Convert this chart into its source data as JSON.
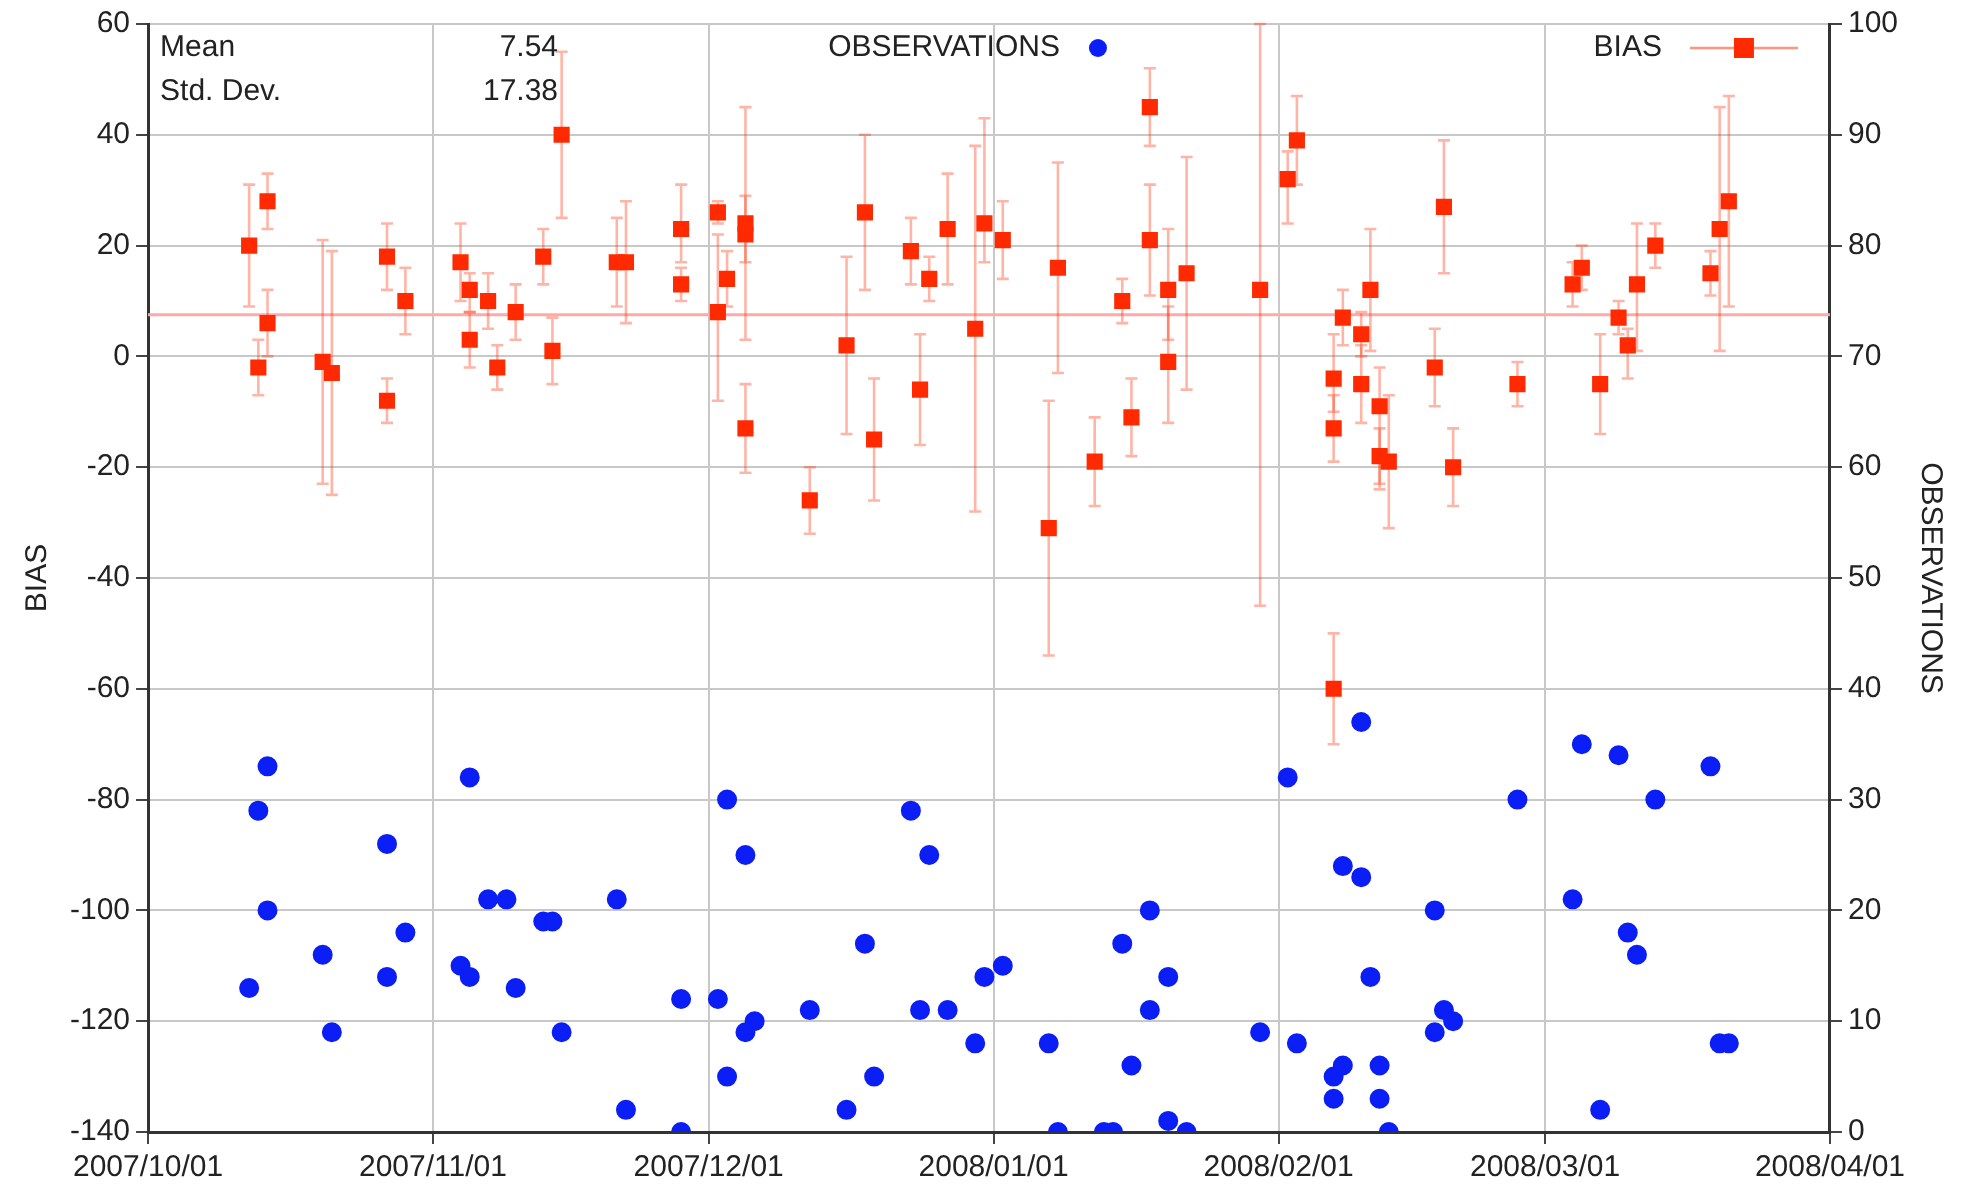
{
  "chart_data": {
    "type": "scatter",
    "ylabel": "BIAS",
    "y2label": "OBSERVATIONS",
    "annotations": [
      "Mean",
      "7.54",
      "Std. Dev.",
      "17.38"
    ],
    "xlim": [
      "2007-10-01",
      "2008-04-01"
    ],
    "xticks": [
      {
        "value": "2007-10-01",
        "label": "2007/10/01"
      },
      {
        "value": "2007-11-01",
        "label": "2007/11/01"
      },
      {
        "value": "2007-12-01",
        "label": "2007/12/01"
      },
      {
        "value": "2008-01-01",
        "label": "2008/01/01"
      },
      {
        "value": "2008-02-01",
        "label": "2008/02/01"
      },
      {
        "value": "2008-03-01",
        "label": "2008/03/01"
      },
      {
        "value": "2008-04-01",
        "label": "2008/04/01"
      }
    ],
    "ylim": [
      -140,
      60
    ],
    "yticks": [
      -140,
      -120,
      -100,
      -80,
      -60,
      -40,
      -20,
      0,
      20,
      40,
      60
    ],
    "y2lim": [
      0,
      100
    ],
    "y2ticks": [
      0,
      10,
      20,
      30,
      40,
      50,
      60,
      70,
      80,
      90,
      100
    ],
    "grid": true,
    "legend": "top right",
    "ref_lines": [
      {
        "axis": "y",
        "value": 7.54,
        "color": "#ffaaaa"
      }
    ],
    "series": [
      {
        "name": "OBSERVATIONS",
        "color": "#0a1ef5",
        "axis": "y2",
        "marker": "circle",
        "x": [
          "2007-10-12",
          "2007-10-13",
          "2007-10-14",
          "2007-10-14",
          "2007-10-20",
          "2007-10-21",
          "2007-10-27",
          "2007-10-27",
          "2007-10-29",
          "2007-11-05",
          "2007-11-04",
          "2007-11-05",
          "2007-11-07",
          "2007-11-09",
          "2007-11-10",
          "2007-11-13",
          "2007-11-14",
          "2007-11-15",
          "2007-11-21",
          "2007-11-22",
          "2007-11-28",
          "2007-11-28",
          "2007-12-02",
          "2007-12-03",
          "2007-12-03",
          "2007-12-05",
          "2007-12-06",
          "2007-12-05",
          "2007-12-12",
          "2007-12-16",
          "2007-12-18",
          "2007-12-19",
          "2007-12-23",
          "2007-12-24",
          "2007-12-25",
          "2007-12-27",
          "2007-12-30",
          "2007-12-31",
          "2008-01-02",
          "2008-01-07",
          "2008-01-08",
          "2008-01-13",
          "2008-01-14",
          "2008-01-15",
          "2008-01-16",
          "2008-01-18",
          "2008-01-18",
          "2008-01-20",
          "2008-01-20",
          "2008-01-22",
          "2008-01-30",
          "2008-02-02",
          "2008-02-03",
          "2008-02-07",
          "2008-02-07",
          "2008-02-08",
          "2008-02-08",
          "2008-02-10",
          "2008-02-10",
          "2008-02-11",
          "2008-02-12",
          "2008-02-12",
          "2008-02-13",
          "2008-02-18",
          "2008-02-18",
          "2008-02-19",
          "2008-02-20",
          "2008-02-27",
          "2008-03-04",
          "2008-03-05",
          "2008-03-07",
          "2008-03-09",
          "2008-03-10",
          "2008-03-11",
          "2008-03-13",
          "2008-03-19",
          "2008-03-20",
          "2008-03-21"
        ],
        "values": [
          13,
          29,
          33,
          20,
          16,
          9,
          26,
          14,
          18,
          32,
          15,
          14,
          21,
          21,
          13,
          19,
          19,
          9,
          21,
          2,
          0,
          12,
          12,
          5,
          30,
          25,
          10,
          9,
          11,
          2,
          17,
          5,
          29,
          11,
          25,
          11,
          8,
          14,
          15,
          8,
          0,
          0,
          0,
          17,
          6,
          11,
          20,
          14,
          1,
          0,
          9,
          32,
          8,
          3,
          5,
          6,
          24,
          37,
          23,
          14,
          6,
          3,
          0,
          20,
          9,
          11,
          10,
          30,
          21,
          35,
          2,
          34,
          18,
          16,
          30,
          33,
          8,
          8
        ]
      },
      {
        "name": "BIAS",
        "color": "#ff2a00",
        "marker": "square",
        "x": [
          "2007-10-12",
          "2007-10-13",
          "2007-10-14",
          "2007-10-14",
          "2007-10-20",
          "2007-10-21",
          "2007-10-27",
          "2007-10-27",
          "2007-10-29",
          "2007-11-04",
          "2007-11-05",
          "2007-11-05",
          "2007-11-07",
          "2007-11-08",
          "2007-11-10",
          "2007-11-13",
          "2007-11-14",
          "2007-11-15",
          "2007-11-21",
          "2007-11-22",
          "2007-11-28",
          "2007-11-28",
          "2007-12-02",
          "2007-12-02",
          "2007-12-03",
          "2007-12-05",
          "2007-12-05",
          "2007-12-05",
          "2007-12-12",
          "2007-12-16",
          "2007-12-18",
          "2007-12-19",
          "2007-12-23",
          "2007-12-24",
          "2007-12-25",
          "2007-12-27",
          "2007-12-30",
          "2007-12-31",
          "2008-01-02",
          "2008-01-07",
          "2008-01-08",
          "2008-01-12",
          "2008-01-15",
          "2008-01-16",
          "2008-01-18",
          "2008-01-18",
          "2008-01-20",
          "2008-01-20",
          "2008-01-22",
          "2008-01-30",
          "2008-02-02",
          "2008-02-03",
          "2008-02-07",
          "2008-02-07",
          "2008-02-07",
          "2008-02-08",
          "2008-02-10",
          "2008-02-11",
          "2008-02-10",
          "2008-02-12",
          "2008-02-12",
          "2008-02-13",
          "2008-02-18",
          "2008-02-19",
          "2008-02-20",
          "2008-02-27",
          "2008-03-04",
          "2008-03-05",
          "2008-03-07",
          "2008-03-09",
          "2008-03-10",
          "2008-03-11",
          "2008-03-13",
          "2008-03-19",
          "2008-03-20",
          "2008-03-21"
        ],
        "values": [
          20,
          -2,
          28,
          6,
          -1,
          -3,
          18,
          -8,
          10,
          17,
          12,
          3,
          10,
          -2,
          8,
          18,
          1,
          40,
          17,
          17,
          23,
          13,
          26,
          8,
          14,
          24,
          22,
          -13,
          -26,
          2,
          26,
          -15,
          19,
          -6,
          14,
          23,
          5,
          24,
          21,
          -31,
          16,
          -19,
          10,
          -11,
          21,
          45,
          12,
          -1,
          15,
          12,
          32,
          39,
          -60,
          -4,
          -13,
          7,
          4,
          12,
          -5,
          -9,
          -18,
          -19,
          -2,
          27,
          -20,
          -5,
          13,
          16,
          -5,
          7,
          2,
          13,
          20,
          15,
          23,
          28
        ],
        "errors": [
          [
            9,
            31
          ],
          [
            -7,
            3
          ],
          [
            23,
            33
          ],
          [
            0,
            12
          ],
          [
            -23,
            21
          ],
          [
            -25,
            19
          ],
          [
            12,
            24
          ],
          [
            -12,
            -4
          ],
          [
            4,
            16
          ],
          [
            10,
            24
          ],
          [
            8,
            15
          ],
          [
            -2,
            8
          ],
          [
            5,
            15
          ],
          [
            -6,
            2
          ],
          [
            3,
            13
          ],
          [
            13,
            23
          ],
          [
            -5,
            7
          ],
          [
            25,
            55
          ],
          [
            9,
            25
          ],
          [
            6,
            28
          ],
          [
            17,
            31
          ],
          [
            10,
            16
          ],
          [
            24,
            28
          ],
          [
            -8,
            22
          ],
          [
            9,
            19
          ],
          [
            3,
            45
          ],
          [
            17,
            29
          ],
          [
            -21,
            -5
          ],
          [
            -32,
            -20
          ],
          [
            -14,
            18
          ],
          [
            12,
            40
          ],
          [
            -26,
            -4
          ],
          [
            13,
            25
          ],
          [
            -16,
            4
          ],
          [
            10,
            18
          ],
          [
            13,
            33
          ],
          [
            -28,
            38
          ],
          [
            17,
            43
          ],
          [
            14,
            28
          ],
          [
            -54,
            -8
          ],
          [
            -3,
            35
          ],
          [
            -27,
            -11
          ],
          [
            6,
            14
          ],
          [
            -18,
            -4
          ],
          [
            11,
            31
          ],
          [
            38,
            52
          ],
          [
            3,
            23
          ],
          [
            -12,
            9
          ],
          [
            -6,
            36
          ],
          [
            -45,
            60
          ],
          [
            24,
            37
          ],
          [
            31,
            47
          ],
          [
            -70,
            -50
          ],
          [
            -10,
            4
          ],
          [
            -19,
            -7
          ],
          [
            2,
            12
          ],
          [
            0,
            8
          ],
          [
            1,
            23
          ],
          [
            -12,
            2
          ],
          [
            -24,
            -2
          ],
          [
            -23,
            -13
          ],
          [
            -31,
            -7
          ],
          [
            -9,
            5
          ],
          [
            15,
            39
          ],
          [
            -27,
            -13
          ],
          [
            -9,
            -1
          ],
          [
            9,
            17
          ],
          [
            12,
            20
          ],
          [
            -14,
            4
          ],
          [
            4,
            10
          ],
          [
            -4,
            5
          ],
          [
            1,
            24
          ],
          [
            16,
            24
          ],
          [
            11,
            19
          ],
          [
            1,
            45
          ],
          [
            9,
            47
          ]
        ]
      }
    ]
  }
}
